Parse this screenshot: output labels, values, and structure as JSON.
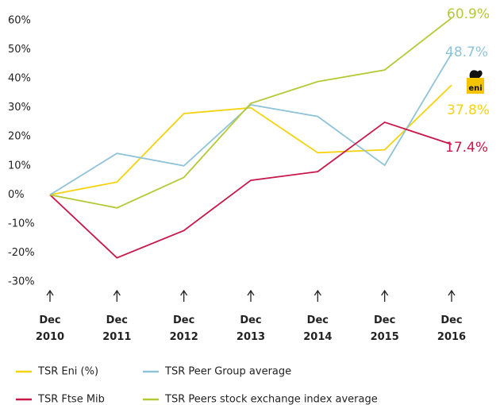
{
  "chart_data": {
    "type": "line",
    "categories": [
      "Dec 2010",
      "Dec 2011",
      "Dec 2012",
      "Dec 2013",
      "Dec 2014",
      "Dec 2015",
      "Dec 2016"
    ],
    "series": [
      {
        "name": "TSR Eni (%)",
        "color": "#f5d30f",
        "values": [
          0,
          4.4,
          28,
          30,
          14.5,
          15.5,
          37.8
        ],
        "value_labels": [
          null,
          null,
          null,
          null,
          null,
          null,
          "37.8%"
        ]
      },
      {
        "name": "TSR Peer Group average",
        "color": "#8fc3d9",
        "values": [
          0,
          14.3,
          10,
          31,
          27,
          10.2,
          48.7
        ],
        "value_labels": [
          null,
          null,
          null,
          null,
          null,
          null,
          "48.7%"
        ]
      },
      {
        "name": "TSR Ftse Mib",
        "color": "#c8174a",
        "values": [
          0,
          -21.7,
          -12.3,
          5,
          8,
          25,
          17.4
        ],
        "value_labels": [
          null,
          null,
          null,
          null,
          null,
          null,
          "17.4%"
        ]
      },
      {
        "name": "TSR Peers stock exchange index average",
        "color": "#b5c935",
        "values": [
          0,
          -4.5,
          6,
          31.5,
          39,
          43,
          60.9
        ],
        "value_labels": [
          null,
          null,
          null,
          null,
          null,
          null,
          "60.9%"
        ]
      }
    ],
    "ylim": [
      -30,
      60
    ],
    "yticks": [
      {
        "value": 60,
        "label": "60%"
      },
      {
        "value": 50,
        "label": "50%"
      },
      {
        "value": 40,
        "label": "40%"
      },
      {
        "value": 30,
        "label": "30%"
      },
      {
        "value": 20,
        "label": "20%"
      },
      {
        "value": 10,
        "label": "10%"
      },
      {
        "value": 0,
        "label": "0%"
      },
      {
        "value": -10,
        "label": "-10%"
      },
      {
        "value": -20,
        "label": "-20%"
      },
      {
        "value": -30,
        "label": "-30%"
      }
    ],
    "grid": false
  }
}
